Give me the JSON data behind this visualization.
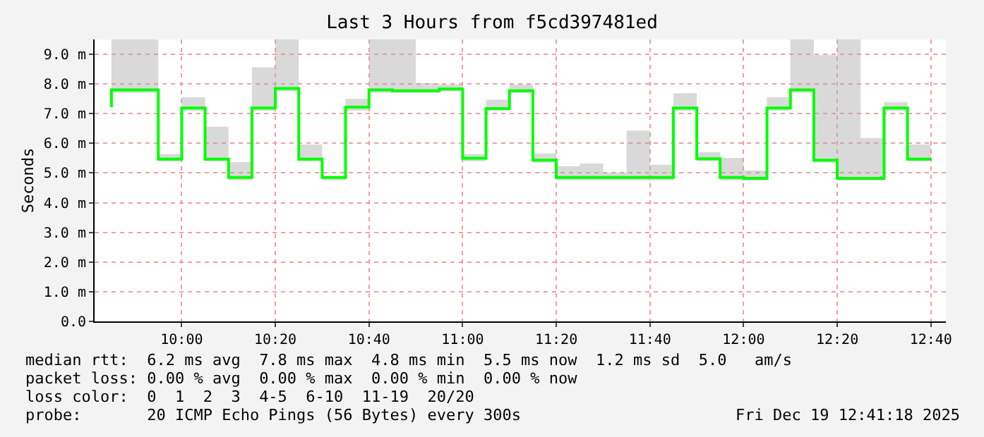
{
  "chart_data": {
    "type": "step",
    "title": "Last 3 Hours from f5cd397481ed",
    "ylabel": "Seconds",
    "x": [
      9.75,
      9.8333,
      9.9167,
      10.0,
      10.0833,
      10.1667,
      10.25,
      10.3333,
      10.4167,
      10.5,
      10.5833,
      10.6667,
      10.75,
      10.8333,
      10.9167,
      11.0,
      11.0833,
      11.1667,
      11.25,
      11.3333,
      11.4167,
      11.5,
      11.5833,
      11.6667,
      11.75,
      11.8333,
      11.9167,
      12.0,
      12.0833,
      12.1667,
      12.25,
      12.3333,
      12.4167,
      12.5,
      12.5833,
      12.6667
    ],
    "series": [
      {
        "color": "#00ff00",
        "values": [
          7.22,
          7.8,
          7.8,
          5.47,
          7.19,
          5.47,
          4.85,
          7.19,
          7.85,
          5.47,
          4.85,
          7.22,
          7.8,
          7.77,
          7.77,
          7.83,
          5.5,
          7.17,
          7.77,
          5.43,
          4.85,
          4.85,
          4.85,
          4.85,
          4.85,
          7.19,
          5.48,
          4.85,
          4.82,
          7.19,
          7.8,
          5.43,
          4.82,
          4.82,
          7.19,
          5.47
        ],
        "lower": [
          7.1,
          7.7,
          7.7,
          5.4,
          7.1,
          5.4,
          4.75,
          7.1,
          7.75,
          5.4,
          4.75,
          7.1,
          7.7,
          7.7,
          7.7,
          7.75,
          5.4,
          7.1,
          7.7,
          5.35,
          4.75,
          4.75,
          4.75,
          4.75,
          4.75,
          7.1,
          5.4,
          4.75,
          4.75,
          7.1,
          7.7,
          5.35,
          4.75,
          4.75,
          7.1,
          5.4
        ],
        "upper": [
          7.55,
          9.5,
          9.5,
          5.64,
          7.55,
          6.56,
          5.37,
          8.56,
          9.5,
          5.96,
          4.9,
          7.5,
          9.5,
          9.5,
          8.03,
          7.98,
          5.64,
          7.47,
          7.98,
          5.66,
          5.23,
          5.32,
          5.02,
          6.43,
          5.28,
          7.69,
          5.7,
          5.51,
          5.09,
          7.55,
          9.5,
          8.97,
          9.5,
          6.18,
          7.39,
          5.96
        ]
      }
    ],
    "xlim": [
      9.69,
      12.72
    ],
    "xticks": [
      {
        "value": 10,
        "label": "10:00"
      },
      {
        "value": 10.3333,
        "label": "10:20"
      },
      {
        "value": 10.6667,
        "label": "10:40"
      },
      {
        "value": 11,
        "label": "11:00"
      },
      {
        "value": 11.3333,
        "label": "11:20"
      },
      {
        "value": 11.6667,
        "label": "11:40"
      },
      {
        "value": 12,
        "label": "12:00"
      },
      {
        "value": 12.3333,
        "label": "12:20"
      },
      {
        "value": 12.6667,
        "label": "12:40"
      }
    ],
    "ylim": [
      0,
      9.5
    ],
    "yticks": [
      {
        "value": 0,
        "label": "0.0"
      },
      {
        "value": 1,
        "label": "1.0 m"
      },
      {
        "value": 2,
        "label": "2.0 m"
      },
      {
        "value": 3,
        "label": "3.0 m"
      },
      {
        "value": 4,
        "label": "4.0 m"
      },
      {
        "value": 5,
        "label": "5.0 m"
      },
      {
        "value": 6,
        "label": "6.0 m"
      },
      {
        "value": 7,
        "label": "7.0 m"
      },
      {
        "value": 8,
        "label": "8.0 m"
      },
      {
        "value": 9,
        "label": "9.0 m"
      }
    ],
    "grid": true,
    "annotations": [
      "median rtt:  6.2 ms avg  7.8 ms max  4.8 ms min  5.5 ms now  1.2 ms sd  5.0   am/s",
      "packet loss: 0.00 % avg  0.00 % max  0.00 % min  0.00 % now",
      "loss color:  0  1  2  3  4-5  6-10  11-19  20/20",
      "probe:       20 ICMP Echo Pings (56 Bytes) every 300s",
      "Fri Dec 19 12:41:18 2025"
    ]
  }
}
